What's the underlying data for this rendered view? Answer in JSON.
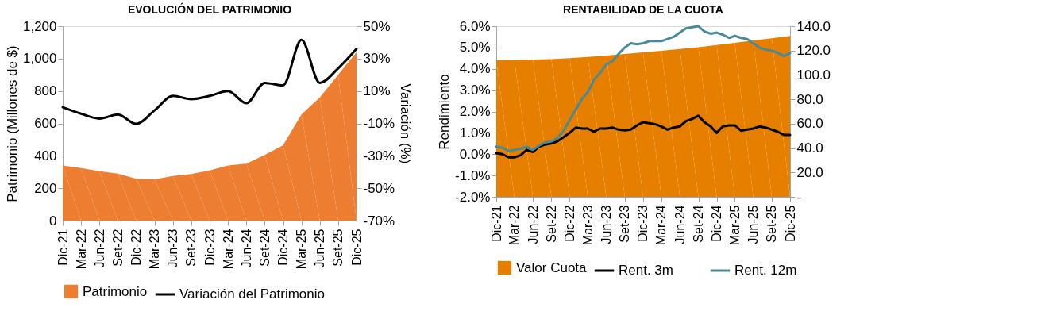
{
  "chart_data": [
    {
      "type": "area",
      "title": "EVOLUCIÓN DEL PATRIMONIO",
      "ylabel": "Patrimonio (Millones de $)",
      "y2label": "Variación (%)",
      "categories": [
        "Dic-21",
        "Mar-22",
        "Jun-22",
        "Set-22",
        "Dic-22",
        "Mar-23",
        "Jun-23",
        "Set-23",
        "Dic-23",
        "Mar-24",
        "Jun-24",
        "Set-24",
        "Dic-24",
        "Mar-25",
        "Jun-25",
        "Set-25",
        "Dic-25"
      ],
      "series": [
        {
          "name": "Patrimonio",
          "color": "#ed7d31",
          "values": [
            340,
            325,
            305,
            290,
            258,
            255,
            275,
            288,
            310,
            340,
            352,
            405,
            465,
            655,
            760,
            900,
            1040
          ]
        },
        {
          "name": "Variación del Patrimonio",
          "type": "line",
          "axis": "y2",
          "color": "#000000",
          "values": [
            0,
            -4,
            -7,
            -4.5,
            -10.3,
            -2,
            7,
            5,
            7,
            10,
            2.5,
            15,
            13.5,
            41.5,
            15,
            24,
            36
          ]
        }
      ],
      "ylim": [
        0,
        1200
      ],
      "yticks": [
        0,
        200,
        400,
        600,
        800,
        {
          "value": 1000,
          "label": "1,000"
        },
        {
          "value": 1200,
          "label": "1,200"
        }
      ],
      "y2lim": [
        -70,
        50
      ],
      "y2ticks": [
        {
          "value": -70,
          "label": "-70%"
        },
        {
          "value": -50,
          "label": "-50%"
        },
        {
          "value": -30,
          "label": "-30%"
        },
        {
          "value": -10,
          "label": "-10%"
        },
        {
          "value": 10,
          "label": "10%"
        },
        {
          "value": 30,
          "label": "30%"
        },
        {
          "value": 50,
          "label": "50%"
        }
      ],
      "legend": "bottom",
      "grid": false
    },
    {
      "type": "line",
      "title": "RENTABILIDAD DE LA CUOTA",
      "ylabel": "Rendimiento",
      "xlim": [
        "2021-12",
        "2025-12"
      ],
      "xticks": [
        {
          "value": "2021-12",
          "label": "Dic-21"
        },
        {
          "value": "2022-03",
          "label": "Mar-22"
        },
        {
          "value": "2022-06",
          "label": "Jun-22"
        },
        {
          "value": "2022-09",
          "label": "Set-22"
        },
        {
          "value": "2022-12",
          "label": "Dic-22"
        },
        {
          "value": "2023-03",
          "label": "Mar-23"
        },
        {
          "value": "2023-06",
          "label": "Jun-23"
        },
        {
          "value": "2023-09",
          "label": "Set-23"
        },
        {
          "value": "2023-12",
          "label": "Dic-23"
        },
        {
          "value": "2024-03",
          "label": "Mar-24"
        },
        {
          "value": "2024-06",
          "label": "Jun-24"
        },
        {
          "value": "2024-09",
          "label": "Set-24"
        },
        {
          "value": "2024-12",
          "label": "Dic-24"
        },
        {
          "value": "2025-03",
          "label": "Mar-25"
        },
        {
          "value": "2025-06",
          "label": "Jun-25"
        },
        {
          "value": "2025-09",
          "label": "Set-25"
        },
        {
          "value": "2025-12",
          "label": "Dic-25"
        }
      ],
      "series": [
        {
          "name": "Valor Cuota",
          "type": "area",
          "axis": "y2",
          "color": "#e67e00",
          "x": [
            "2021-12",
            "2022-03",
            "2022-06",
            "2022-09",
            "2022-12",
            "2023-03",
            "2023-06",
            "2023-09",
            "2023-12",
            "2024-03",
            "2024-06",
            "2024-09",
            "2024-12",
            "2025-03",
            "2025-06",
            "2025-09",
            "2025-12"
          ],
          "values": [
            112.2,
            112.3,
            112.6,
            113.0,
            113.8,
            114.8,
            115.9,
            117.2,
            118.5,
            119.8,
            121.2,
            122.8,
            124.5,
            126.3,
            128.2,
            130.0,
            132.0
          ]
        },
        {
          "name": "Rent. 3m",
          "color": "#000000",
          "x": [
            "2021-12",
            "2022-01",
            "2022-02",
            "2022-03",
            "2022-04",
            "2022-05",
            "2022-06",
            "2022-07",
            "2022-08",
            "2022-09",
            "2022-10",
            "2022-11",
            "2022-12",
            "2023-01",
            "2023-02",
            "2023-03",
            "2023-04",
            "2023-05",
            "2023-06",
            "2023-07",
            "2023-08",
            "2023-09",
            "2023-10",
            "2023-11",
            "2023-12",
            "2024-01",
            "2024-02",
            "2024-03",
            "2024-04",
            "2024-05",
            "2024-06",
            "2024-07",
            "2024-08",
            "2024-09",
            "2024-10",
            "2024-11",
            "2024-12",
            "2025-01",
            "2025-02",
            "2025-03",
            "2025-04",
            "2025-05",
            "2025-06",
            "2025-07",
            "2025-08",
            "2025-09",
            "2025-10",
            "2025-11",
            "2025-12"
          ],
          "values": [
            0.05,
            0.0,
            -0.15,
            -0.15,
            -0.05,
            0.2,
            0.1,
            0.35,
            0.45,
            0.5,
            0.6,
            0.8,
            1.0,
            1.25,
            1.2,
            1.2,
            1.05,
            1.2,
            1.2,
            1.25,
            1.15,
            1.12,
            1.15,
            1.35,
            1.5,
            1.45,
            1.4,
            1.3,
            1.15,
            1.25,
            1.3,
            1.55,
            1.65,
            1.8,
            1.5,
            1.3,
            1.0,
            1.3,
            1.35,
            1.35,
            1.1,
            1.15,
            1.2,
            1.3,
            1.25,
            1.15,
            1.05,
            0.9,
            0.9
          ]
        },
        {
          "name": "Rent. 12m",
          "color": "#4a8a94",
          "x": [
            "2021-12",
            "2022-01",
            "2022-02",
            "2022-03",
            "2022-04",
            "2022-05",
            "2022-06",
            "2022-07",
            "2022-08",
            "2022-09",
            "2022-10",
            "2022-11",
            "2022-12",
            "2023-01",
            "2023-02",
            "2023-03",
            "2023-04",
            "2023-05",
            "2023-06",
            "2023-07",
            "2023-08",
            "2023-09",
            "2023-10",
            "2023-11",
            "2023-12",
            "2024-01",
            "2024-02",
            "2024-03",
            "2024-04",
            "2024-05",
            "2024-06",
            "2024-07",
            "2024-08",
            "2024-09",
            "2024-10",
            "2024-11",
            "2024-12",
            "2025-01",
            "2025-02",
            "2025-03",
            "2025-04",
            "2025-05",
            "2025-06",
            "2025-07",
            "2025-08",
            "2025-09",
            "2025-10",
            "2025-11",
            "2025-12"
          ],
          "values": [
            0.35,
            0.3,
            0.15,
            0.2,
            0.25,
            0.35,
            0.2,
            0.4,
            0.55,
            0.6,
            0.75,
            1.1,
            1.6,
            2.1,
            2.6,
            2.9,
            3.5,
            3.8,
            4.2,
            4.35,
            4.7,
            5.0,
            5.2,
            5.15,
            5.2,
            5.3,
            5.3,
            5.3,
            5.4,
            5.5,
            5.7,
            5.9,
            5.95,
            6.0,
            5.75,
            5.65,
            5.7,
            5.6,
            5.45,
            5.55,
            5.45,
            5.4,
            5.2,
            5.0,
            4.9,
            4.85,
            4.75,
            4.6,
            4.75
          ]
        }
      ],
      "ylim": [
        -2,
        6
      ],
      "yticks": [
        {
          "value": -2,
          "label": "-2.0%"
        },
        {
          "value": -1,
          "label": "-1.0%"
        },
        {
          "value": 0,
          "label": "0.0%"
        },
        {
          "value": 1,
          "label": "1.0%"
        },
        {
          "value": 2,
          "label": "2.0%"
        },
        {
          "value": 3,
          "label": "3.0%"
        },
        {
          "value": 4,
          "label": "4.0%"
        },
        {
          "value": 5,
          "label": "5.0%"
        },
        {
          "value": 6,
          "label": "6.0%"
        }
      ],
      "y2lim": [
        0,
        140
      ],
      "y2ticks": [
        {
          "value": 0,
          "label": "-"
        },
        {
          "value": 20,
          "label": "20.0"
        },
        {
          "value": 40,
          "label": "40.0"
        },
        {
          "value": 60,
          "label": "60.0"
        },
        {
          "value": 80,
          "label": "80.0"
        },
        {
          "value": 100,
          "label": "100.0"
        },
        {
          "value": 120,
          "label": "120.0"
        },
        {
          "value": 140,
          "label": "140.0"
        }
      ],
      "legend": "bottom",
      "grid": false
    }
  ]
}
